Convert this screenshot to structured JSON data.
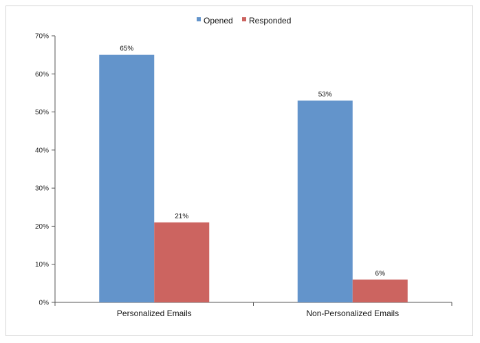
{
  "chart_data": {
    "type": "bar",
    "title": "",
    "xlabel": "",
    "ylabel": "",
    "categories": [
      "Personalized Emails",
      "Non-Personalized Emails"
    ],
    "series": [
      {
        "name": "Opened",
        "values": [
          65,
          53
        ],
        "color": "#6394cb"
      },
      {
        "name": "Responded",
        "values": [
          21,
          6
        ],
        "color": "#cc6460"
      }
    ],
    "data_labels": [
      [
        "65%",
        "53%"
      ],
      [
        "21%",
        "6%"
      ]
    ],
    "ylim": [
      0,
      70
    ],
    "yticks": [
      0,
      10,
      20,
      30,
      40,
      50,
      60,
      70
    ],
    "ytick_labels": [
      "0%",
      "10%",
      "20%",
      "30%",
      "40%",
      "50%",
      "60%",
      "70%"
    ],
    "grid": false,
    "legend": "top-center"
  }
}
